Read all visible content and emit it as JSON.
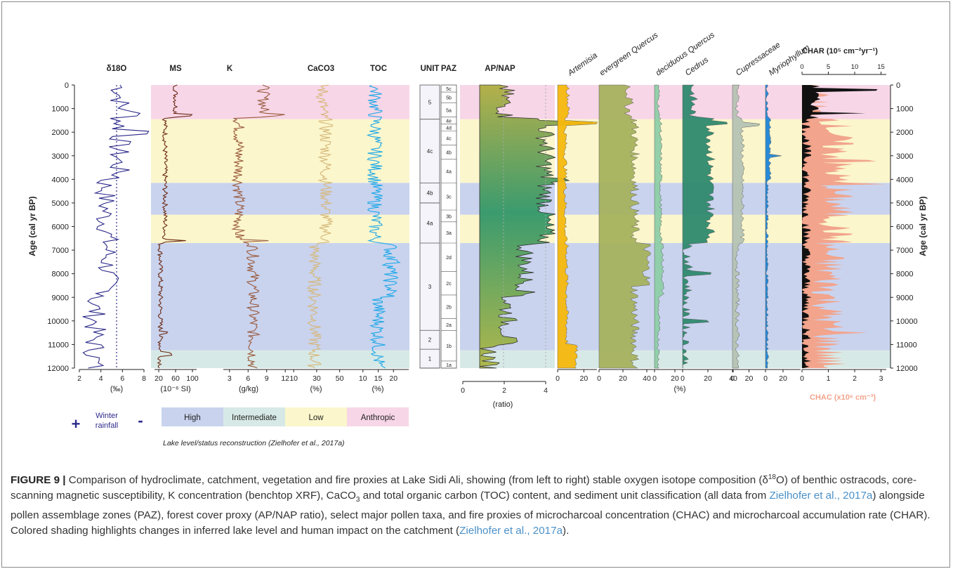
{
  "panel_titles": [
    "δ18O",
    "MS",
    "K",
    "CaCO3",
    "TOC",
    "UNIT",
    "PAZ",
    "AP/NAP"
  ],
  "pollen_titles": [
    "Artemisia",
    "evergreen Quercus",
    "deciduous Quercus",
    "Cedrus",
    "Cupressaceae",
    "Myriophyllum"
  ],
  "char_title": "CHAR (10⁵ cm⁻²yr⁻¹)",
  "chac_label": "CHAC (x10⁶ cm⁻³)",
  "axis_title_left": "Age (cal yr BP)",
  "axis_title_right": "Age (cal yr BP)",
  "age_ticks": [
    "0",
    "1000",
    "2000",
    "3000",
    "4000",
    "5000",
    "6000",
    "7000",
    "8000",
    "9000",
    "10000",
    "11000",
    "12000"
  ],
  "units": {
    "d18o": "(‰)",
    "ms": "(10⁻⁶ SI)",
    "k": "(g/kg)",
    "caco3": "(%)",
    "toc": "(%)",
    "apnap": "(ratio)",
    "pollen": "(%)"
  },
  "x_ticks": {
    "d18o": [
      "2",
      "4",
      "6",
      "8"
    ],
    "ms": [
      "20",
      "60",
      "100"
    ],
    "k": [
      "3",
      "6",
      "9",
      "12"
    ],
    "caco3": [
      "10",
      "30",
      "50"
    ],
    "toc": [
      "10",
      "15",
      "20"
    ],
    "apnap": [
      "0",
      "2",
      "4"
    ],
    "artemisia": [
      "0",
      "20"
    ],
    "evq": [
      "0",
      "20",
      "40"
    ],
    "decq": [
      "0",
      "20"
    ],
    "cedrus": [
      "0",
      "20",
      "40"
    ],
    "cupr": [
      "0",
      "20"
    ],
    "myrio": [
      "0",
      "20"
    ],
    "char_top": [
      "0",
      "5",
      "10",
      "15"
    ],
    "chac_bottom": [
      "0",
      "1",
      "2",
      "3"
    ]
  },
  "units_column": [
    "5",
    "4c",
    "4b",
    "4a",
    "3",
    "2",
    "1"
  ],
  "paz_column": [
    "5c",
    "5b",
    "5a",
    "4e",
    "4d",
    "4c",
    "4b",
    "4a",
    "3c",
    "3b",
    "3a",
    "2d",
    "2c",
    "2b",
    "2a",
    "1b",
    "1a"
  ],
  "winter_rainfall": {
    "plus": "+",
    "label_line1": "Winter",
    "label_line2": "rainfall",
    "minus": "-"
  },
  "legend": [
    {
      "label": "High",
      "color": "#c9d3ee"
    },
    {
      "label": "Intermediate",
      "color": "#d7e9e6"
    },
    {
      "label": "Low",
      "color": "#fbf6cc"
    },
    {
      "label": "Anthropic",
      "color": "#f7d6e7"
    }
  ],
  "legend_note": "Lake level/status reconstruction (Zielhofer et al., 2017a)",
  "caption": {
    "label": "FIGURE 9 |",
    "p1": " Comparison of hydroclimate, catchment, vegetation and fire proxies at Lake Sidi Ali, showing (from left to right) stable oxygen isotope composition (δ",
    "sup18": "18",
    "p2": "O) of benthic ostracods, core-scanning magnetic susceptibility, K concentration (benchtop XRF), CaCO",
    "sub3": "3",
    "p3": " and total organic carbon (TOC) content, and sediment unit classification (all data from ",
    "cite1": "Zielhofer et al., 2017a",
    "p4": ") alongside pollen assemblage zones (PAZ), forest cover proxy (AP/NAP ratio), select major pollen taxa, and fire proxies of microcharcoal concentration (CHAC) and microcharcoal accumulation rate (CHAR). Colored shading highlights changes in inferred lake level and human impact on the catchment (",
    "cite2": "Zielhofer et al., 2017a",
    "p5": ")."
  },
  "colors": {
    "high": "#c9d3ee",
    "intermediate": "#d7e9e6",
    "low": "#fbf6cc",
    "anthropic": "#f7d6e7",
    "d18o": "#2c2a8a",
    "ms": "#6b2a14",
    "k": "#9a5a3c",
    "caco3": "#d6b779",
    "toc": "#1ca8e8",
    "artemisia": "#f6b90e",
    "evq": "#a7b35e",
    "decq": "#8fcfa8",
    "cedrus": "#2f8a6e",
    "cupr": "#b6c4b4",
    "myrio": "#1e86d8",
    "chac": "#f2a48c",
    "char": "#111111"
  }
}
